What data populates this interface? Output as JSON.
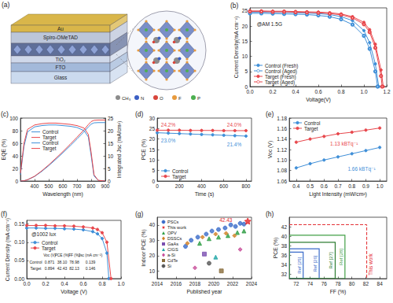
{
  "diagram": {
    "panel": "(a)",
    "layers": [
      {
        "label": "Au",
        "color": "#d9b64a"
      },
      {
        "label": "Spiro-OMeTAD",
        "color": "#bcc6d9"
      },
      {
        "label": "TiO₂",
        "color": "#cfd8ea"
      },
      {
        "label": "FTO",
        "color": "#a3b9da"
      },
      {
        "label": "Glass",
        "color": "#cbdaee"
      }
    ],
    "atoms": [
      {
        "label": "CH₃",
        "color": "#8c8c8c"
      },
      {
        "label": "N",
        "color": "#3b5fc4"
      },
      {
        "label": "O",
        "color": "#d8453b"
      },
      {
        "label": "F",
        "color": "#e89a3c"
      },
      {
        "label": "P",
        "color": "#4caf50"
      }
    ]
  },
  "chart_data": [
    {
      "panel": "(b)",
      "type": "line",
      "xlabel": "Voltage(V)",
      "ylabel": "Current Density(mA cm⁻²)",
      "xlim": [
        0,
        1.2
      ],
      "xticks": [
        {
          "value": 0,
          "label": "0.0"
        },
        0.2,
        0.4,
        0.6,
        0.8,
        {
          "value": 1,
          "label": "1.0"
        },
        1.2
      ],
      "ylim": [
        0,
        26
      ],
      "yticks": [
        0,
        5,
        10,
        15,
        20,
        25
      ],
      "grid": false,
      "legend": "lower left",
      "annotations": [
        "@AM 1.5G"
      ],
      "series": [
        {
          "name": "Control (Fresh)",
          "color": "#3f8fd8",
          "marker": "circle",
          "x": [
            0,
            0.1,
            0.2,
            0.3,
            0.4,
            0.5,
            0.6,
            0.7,
            0.8,
            0.9,
            1.0,
            1.05,
            1.1,
            1.13
          ],
          "values": [
            24.6,
            24.6,
            24.5,
            24.5,
            24.4,
            24.3,
            24.1,
            23.8,
            23.1,
            21.8,
            18.5,
            14.5,
            7.5,
            0
          ]
        },
        {
          "name": "Control (Aged)",
          "color": "#3f8fd8",
          "marker": "open_circle",
          "x": [
            0,
            0.1,
            0.2,
            0.3,
            0.4,
            0.5,
            0.6,
            0.7,
            0.8,
            0.9,
            1.0,
            1.05,
            1.1,
            1.12
          ],
          "values": [
            24.2,
            24.2,
            24.1,
            24.0,
            23.9,
            23.8,
            23.5,
            23.1,
            22.2,
            20.5,
            16.8,
            12.5,
            5.0,
            0
          ]
        },
        {
          "name": "Target (Fresh)",
          "color": "#e8474c",
          "marker": "circle",
          "x": [
            0,
            0.1,
            0.2,
            0.3,
            0.4,
            0.5,
            0.6,
            0.7,
            0.8,
            0.9,
            1.0,
            1.05,
            1.1,
            1.15,
            1.17
          ],
          "values": [
            25.0,
            25.0,
            24.9,
            24.9,
            24.8,
            24.7,
            24.6,
            24.4,
            24.0,
            23.1,
            21.2,
            18.8,
            14.0,
            5.5,
            0
          ]
        },
        {
          "name": "Target (Aged)",
          "color": "#e8474c",
          "marker": "open_circle",
          "x": [
            0,
            0.1,
            0.2,
            0.3,
            0.4,
            0.5,
            0.6,
            0.7,
            0.8,
            0.9,
            1.0,
            1.05,
            1.1,
            1.15,
            1.16
          ],
          "values": [
            24.8,
            24.8,
            24.7,
            24.7,
            24.6,
            24.5,
            24.4,
            24.1,
            23.7,
            22.7,
            20.6,
            18.0,
            12.8,
            3.5,
            0
          ]
        }
      ]
    },
    {
      "panel": "(c)",
      "type": "line",
      "xlabel": "Wavelength (nm)",
      "ylabel": "EQE (%)",
      "y2label": "Integrated Jsc (mA/cm²)",
      "xlim": [
        300,
        900
      ],
      "xticks": [
        400,
        500,
        600,
        700,
        800,
        900
      ],
      "ylim": [
        0,
        100
      ],
      "yticks": [
        0,
        20,
        40,
        60,
        80,
        100
      ],
      "y2lim": [
        0,
        25
      ],
      "y2ticks": [
        0,
        5,
        10,
        15,
        20,
        25
      ],
      "grid": false,
      "legend": "center",
      "x": [
        300,
        325,
        350,
        400,
        450,
        500,
        550,
        600,
        650,
        700,
        750,
        780,
        800,
        820,
        850,
        900
      ],
      "series": [
        {
          "name": "Control",
          "color": "#3f8fd8",
          "values": [
            10,
            55,
            78,
            86,
            88,
            89,
            89,
            88,
            87,
            85,
            80,
            70,
            40,
            8,
            1,
            0
          ]
        },
        {
          "name": "Target",
          "color": "#e8474c",
          "values": [
            12,
            60,
            82,
            89,
            91,
            92,
            92,
            91,
            90,
            88,
            84,
            74,
            45,
            10,
            1,
            0
          ]
        },
        {
          "name": "Control",
          "color": "#3f8fd8",
          "axis": "y2",
          "values": [
            0,
            0.1,
            0.5,
            1.8,
            3.8,
            6.1,
            8.6,
            11.2,
            13.9,
            16.7,
            19.6,
            21.5,
            22.6,
            23.1,
            23.2,
            23.2
          ]
        },
        {
          "name": "Target",
          "color": "#e8474c",
          "axis": "y2",
          "values": [
            0,
            0.1,
            0.5,
            1.9,
            4.0,
            6.4,
            9.0,
            11.7,
            14.5,
            17.4,
            20.4,
            22.4,
            23.6,
            24.1,
            24.2,
            24.2
          ]
        }
      ]
    },
    {
      "panel": "(d)",
      "type": "line",
      "xlabel": "Time (s)",
      "ylabel": "PCE (%)",
      "xlim": [
        0,
        850
      ],
      "xticks": [
        0,
        200,
        400,
        600,
        800
      ],
      "ylim": [
        0,
        30
      ],
      "yticks": [
        0,
        5,
        10,
        15,
        20,
        25,
        30
      ],
      "grid": false,
      "legend": "lower left",
      "annotations": [
        "24.2%",
        "24.0%",
        "23.0%",
        "21.4%"
      ],
      "x": [
        0,
        100,
        200,
        300,
        400,
        500,
        600,
        700,
        800
      ],
      "series": [
        {
          "name": "Control",
          "color": "#3f8fd8",
          "marker": "circle",
          "values": [
            23.0,
            22.8,
            22.6,
            22.4,
            22.2,
            22.0,
            21.8,
            21.6,
            21.4
          ]
        },
        {
          "name": "Target",
          "color": "#e8474c",
          "marker": "circle",
          "values": [
            24.2,
            24.2,
            24.2,
            24.1,
            24.1,
            24.1,
            24.0,
            24.0,
            24.0
          ]
        }
      ]
    },
    {
      "panel": "(e)",
      "type": "line",
      "xlabel": "Light Intensity (mW/cm²)",
      "ylabel": "Voc (V)",
      "xlim": [
        0.35,
        1.05
      ],
      "xticks": [
        0.4,
        0.5,
        0.6,
        0.7,
        0.8,
        0.9,
        {
          "value": 1,
          "label": "1.0"
        }
      ],
      "ylim": [
        1.06,
        1.18
      ],
      "yticks": [
        1.06,
        1.08,
        {
          "value": 1.1,
          "label": "1.10"
        },
        1.12,
        1.14,
        1.16,
        1.18
      ],
      "grid": false,
      "legend": "upper left",
      "annotations": [
        "1.13 kBTq⁻¹",
        "1.66 kBTq⁻¹"
      ],
      "x": [
        0.4,
        0.5,
        0.6,
        0.7,
        0.8,
        0.9,
        1.0
      ],
      "series": [
        {
          "name": "Control",
          "color": "#3f8fd8",
          "marker": "circle",
          "values": [
            1.085,
            1.093,
            1.1,
            1.106,
            1.112,
            1.118,
            1.124
          ]
        },
        {
          "name": "Target",
          "color": "#e8474c",
          "marker": "circle",
          "values": [
            1.134,
            1.14,
            1.145,
            1.15,
            1.153,
            1.157,
            1.161
          ]
        }
      ]
    },
    {
      "panel": "(f)",
      "type": "line",
      "xlabel": "Voltage (V)",
      "ylabel": "Current Density (mA cm⁻²)",
      "xlim": [
        0,
        1
      ],
      "xticks": [
        {
          "value": 0,
          "label": "0.0"
        },
        0.2,
        0.4,
        0.6,
        0.8,
        {
          "value": 1,
          "label": "1.0"
        }
      ],
      "ylim": [
        0,
        0.16
      ],
      "yticks": [
        {
          "value": 0,
          "label": "0.00"
        },
        0.05,
        {
          "value": 0.1,
          "label": "0.10"
        },
        0.15
      ],
      "grid": false,
      "legend": "upper left",
      "annotations": [
        "@1002 lux"
      ],
      "table": {
        "header": [
          "Voc (V)",
          "PCE (%)",
          "FF (%)",
          "Jsc (mA cm⁻²)"
        ],
        "rows": [
          [
            "Control",
            "0.871",
            "38.10",
            "78.98",
            "0.139"
          ],
          [
            "Target",
            "0.894",
            "42.43",
            "82.13",
            "0.146"
          ]
        ]
      },
      "series": [
        {
          "name": "Control",
          "color": "#3f8fd8",
          "marker": "circle",
          "x": [
            0,
            0.1,
            0.2,
            0.3,
            0.4,
            0.5,
            0.6,
            0.7,
            0.75,
            0.8,
            0.85,
            0.871
          ],
          "values": [
            0.139,
            0.139,
            0.138,
            0.138,
            0.137,
            0.136,
            0.134,
            0.129,
            0.123,
            0.11,
            0.07,
            0
          ]
        },
        {
          "name": "Target",
          "color": "#e8474c",
          "marker": "circle",
          "x": [
            0,
            0.1,
            0.2,
            0.3,
            0.4,
            0.5,
            0.6,
            0.7,
            0.75,
            0.8,
            0.85,
            0.894
          ],
          "values": [
            0.146,
            0.146,
            0.146,
            0.145,
            0.145,
            0.144,
            0.142,
            0.139,
            0.135,
            0.126,
            0.1,
            0
          ]
        }
      ]
    },
    {
      "panel": "(g)",
      "type": "scatter",
      "xlabel": "Published year",
      "ylabel": "Indoor PCE (%)",
      "xlim": [
        2014,
        2024
      ],
      "xticks": [
        2014,
        2016,
        2018,
        2020,
        2022,
        2024
      ],
      "ylim": [
        5,
        45
      ],
      "yticks": [
        10,
        20,
        30,
        40
      ],
      "grid": false,
      "legend": "upper left",
      "annotations": [
        "42.43"
      ],
      "series": [
        {
          "name": "PSCs",
          "color": "#3a6bc9",
          "marker": "circle",
          "x": [
            2017.0,
            2017.6,
            2018.3,
            2019.2,
            2019.8,
            2020.5,
            2021.2,
            2021.8,
            2022.3,
            2022.8,
            2023.2
          ],
          "values": [
            26,
            30,
            32,
            34,
            36,
            37,
            38,
            40,
            39,
            41,
            40.5
          ]
        },
        {
          "name": "This work",
          "color": "#e3262b",
          "marker": "star",
          "x": [
            2023.6
          ],
          "values": [
            42.43
          ]
        },
        {
          "name": "OPV",
          "color": "#2e9e44",
          "marker": "triangle",
          "x": [
            2018.5,
            2019.5,
            2020.5,
            2021.5,
            2022.5,
            2023.2
          ],
          "values": [
            28,
            31,
            32,
            33,
            35,
            36
          ]
        },
        {
          "name": "DSSCs",
          "color": "#d07d1f",
          "marker": "diamond",
          "x": [
            2017.2,
            2018.8,
            2020.2,
            2021.3,
            2022.2
          ],
          "values": [
            28,
            32,
            34,
            34.5,
            33
          ]
        },
        {
          "name": "GaAs",
          "color": "#7a4fb0",
          "marker": "square",
          "x": [
            2019.0
          ],
          "values": [
            21
          ]
        },
        {
          "name": "CIGS",
          "color": "#1fa6a6",
          "marker": "triangle",
          "x": [
            2020.2
          ],
          "values": [
            19
          ]
        },
        {
          "name": "a-Si",
          "color": "#c84d9a",
          "marker": "diamond",
          "x": [
            2018.0,
            2022.8
          ],
          "values": [
            12,
            24
          ]
        },
        {
          "name": "CdTe",
          "color": "#8a6d3b",
          "marker": "square",
          "x": [
            2020.8
          ],
          "values": [
            10
          ]
        },
        {
          "name": "Si",
          "color": "#555555",
          "marker": "circle",
          "x": [
            2019.5
          ],
          "values": [
            15
          ]
        }
      ]
    },
    {
      "panel": "(h)",
      "type": "box",
      "xlabel": "FF (%)",
      "ylabel": "PCE (%)",
      "xlim": [
        71,
        85
      ],
      "xticks": [
        72,
        74,
        76,
        78,
        80,
        82,
        84
      ],
      "ylim": [
        31,
        44
      ],
      "yticks": [
        32,
        34,
        36,
        38,
        40,
        42
      ],
      "grid": false,
      "series": [
        {
          "name": "Ref [25]",
          "color": "#3a6bc9",
          "x": [
            73.0
          ],
          "values": [
            36.6
          ]
        },
        {
          "name": "Ref [26]",
          "color": "#3a6bc9",
          "x": [
            75.3
          ],
          "values": [
            37.3
          ]
        },
        {
          "name": "Ref [27]",
          "color": "#2e7d32",
          "x": [
            77.6
          ],
          "values": [
            38.7
          ]
        },
        {
          "name": "Ref [28]",
          "color": "#43a047",
          "x": [
            79.0
          ],
          "values": [
            40.2
          ]
        },
        {
          "name": "This work",
          "type": "guide",
          "color": "#e3262b",
          "line_style": "dashed",
          "x": [
            82.13
          ],
          "values": [
            42.43
          ]
        }
      ]
    }
  ]
}
